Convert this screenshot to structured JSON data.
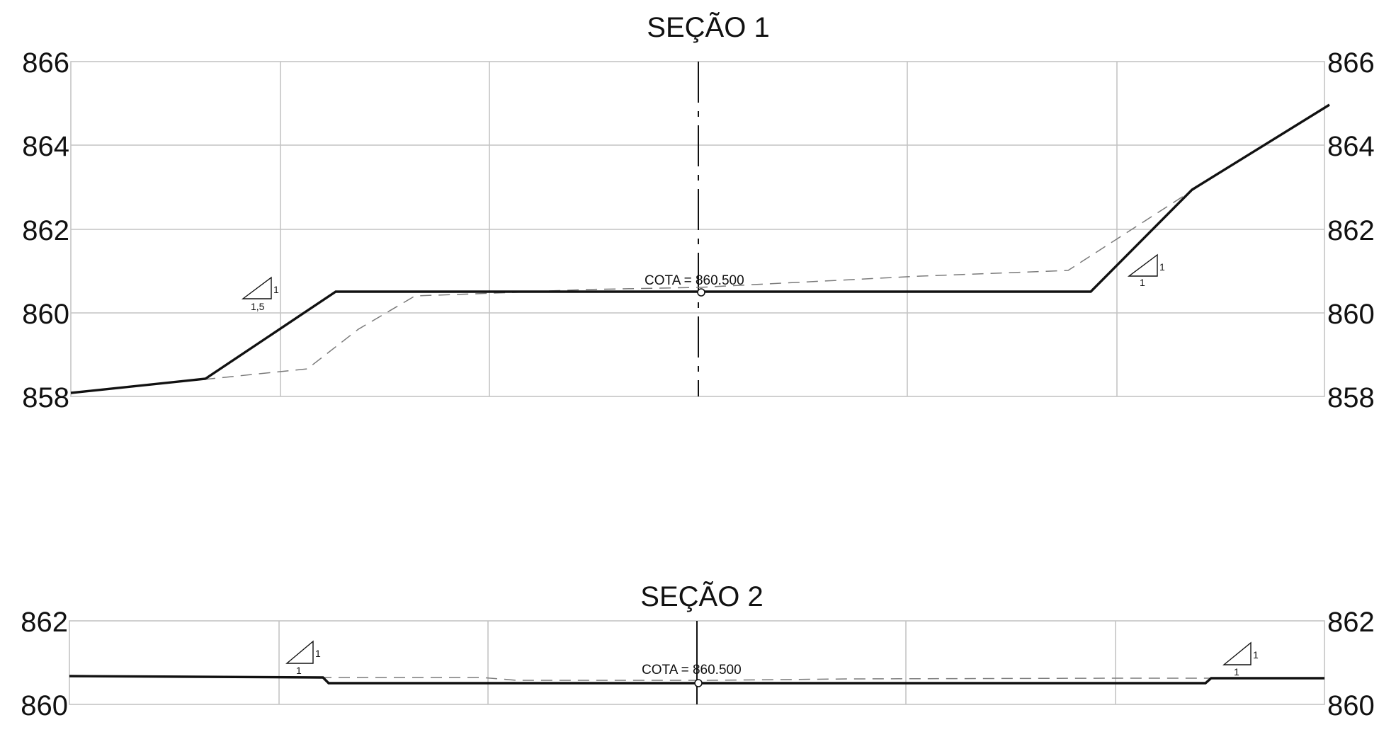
{
  "sections": [
    {
      "title": "SEÇÃO 1",
      "y_ticks": [
        "866",
        "864",
        "862",
        "860",
        "858"
      ],
      "cota_label": "COTA = 860.500",
      "slope_markers": [
        {
          "rise": "1",
          "run": "1,5"
        },
        {
          "rise": "1",
          "run": "1"
        }
      ]
    },
    {
      "title": "SEÇÃO 2",
      "y_ticks": [
        "862",
        "860"
      ],
      "cota_label": "COTA = 860.500",
      "slope_markers": [
        {
          "rise": "1",
          "run": "1"
        },
        {
          "rise": "1",
          "run": "1"
        }
      ]
    }
  ],
  "colors": {
    "grid": "#c4c4c4",
    "profile": "#111111",
    "terrain": "#7a7a7a"
  }
}
